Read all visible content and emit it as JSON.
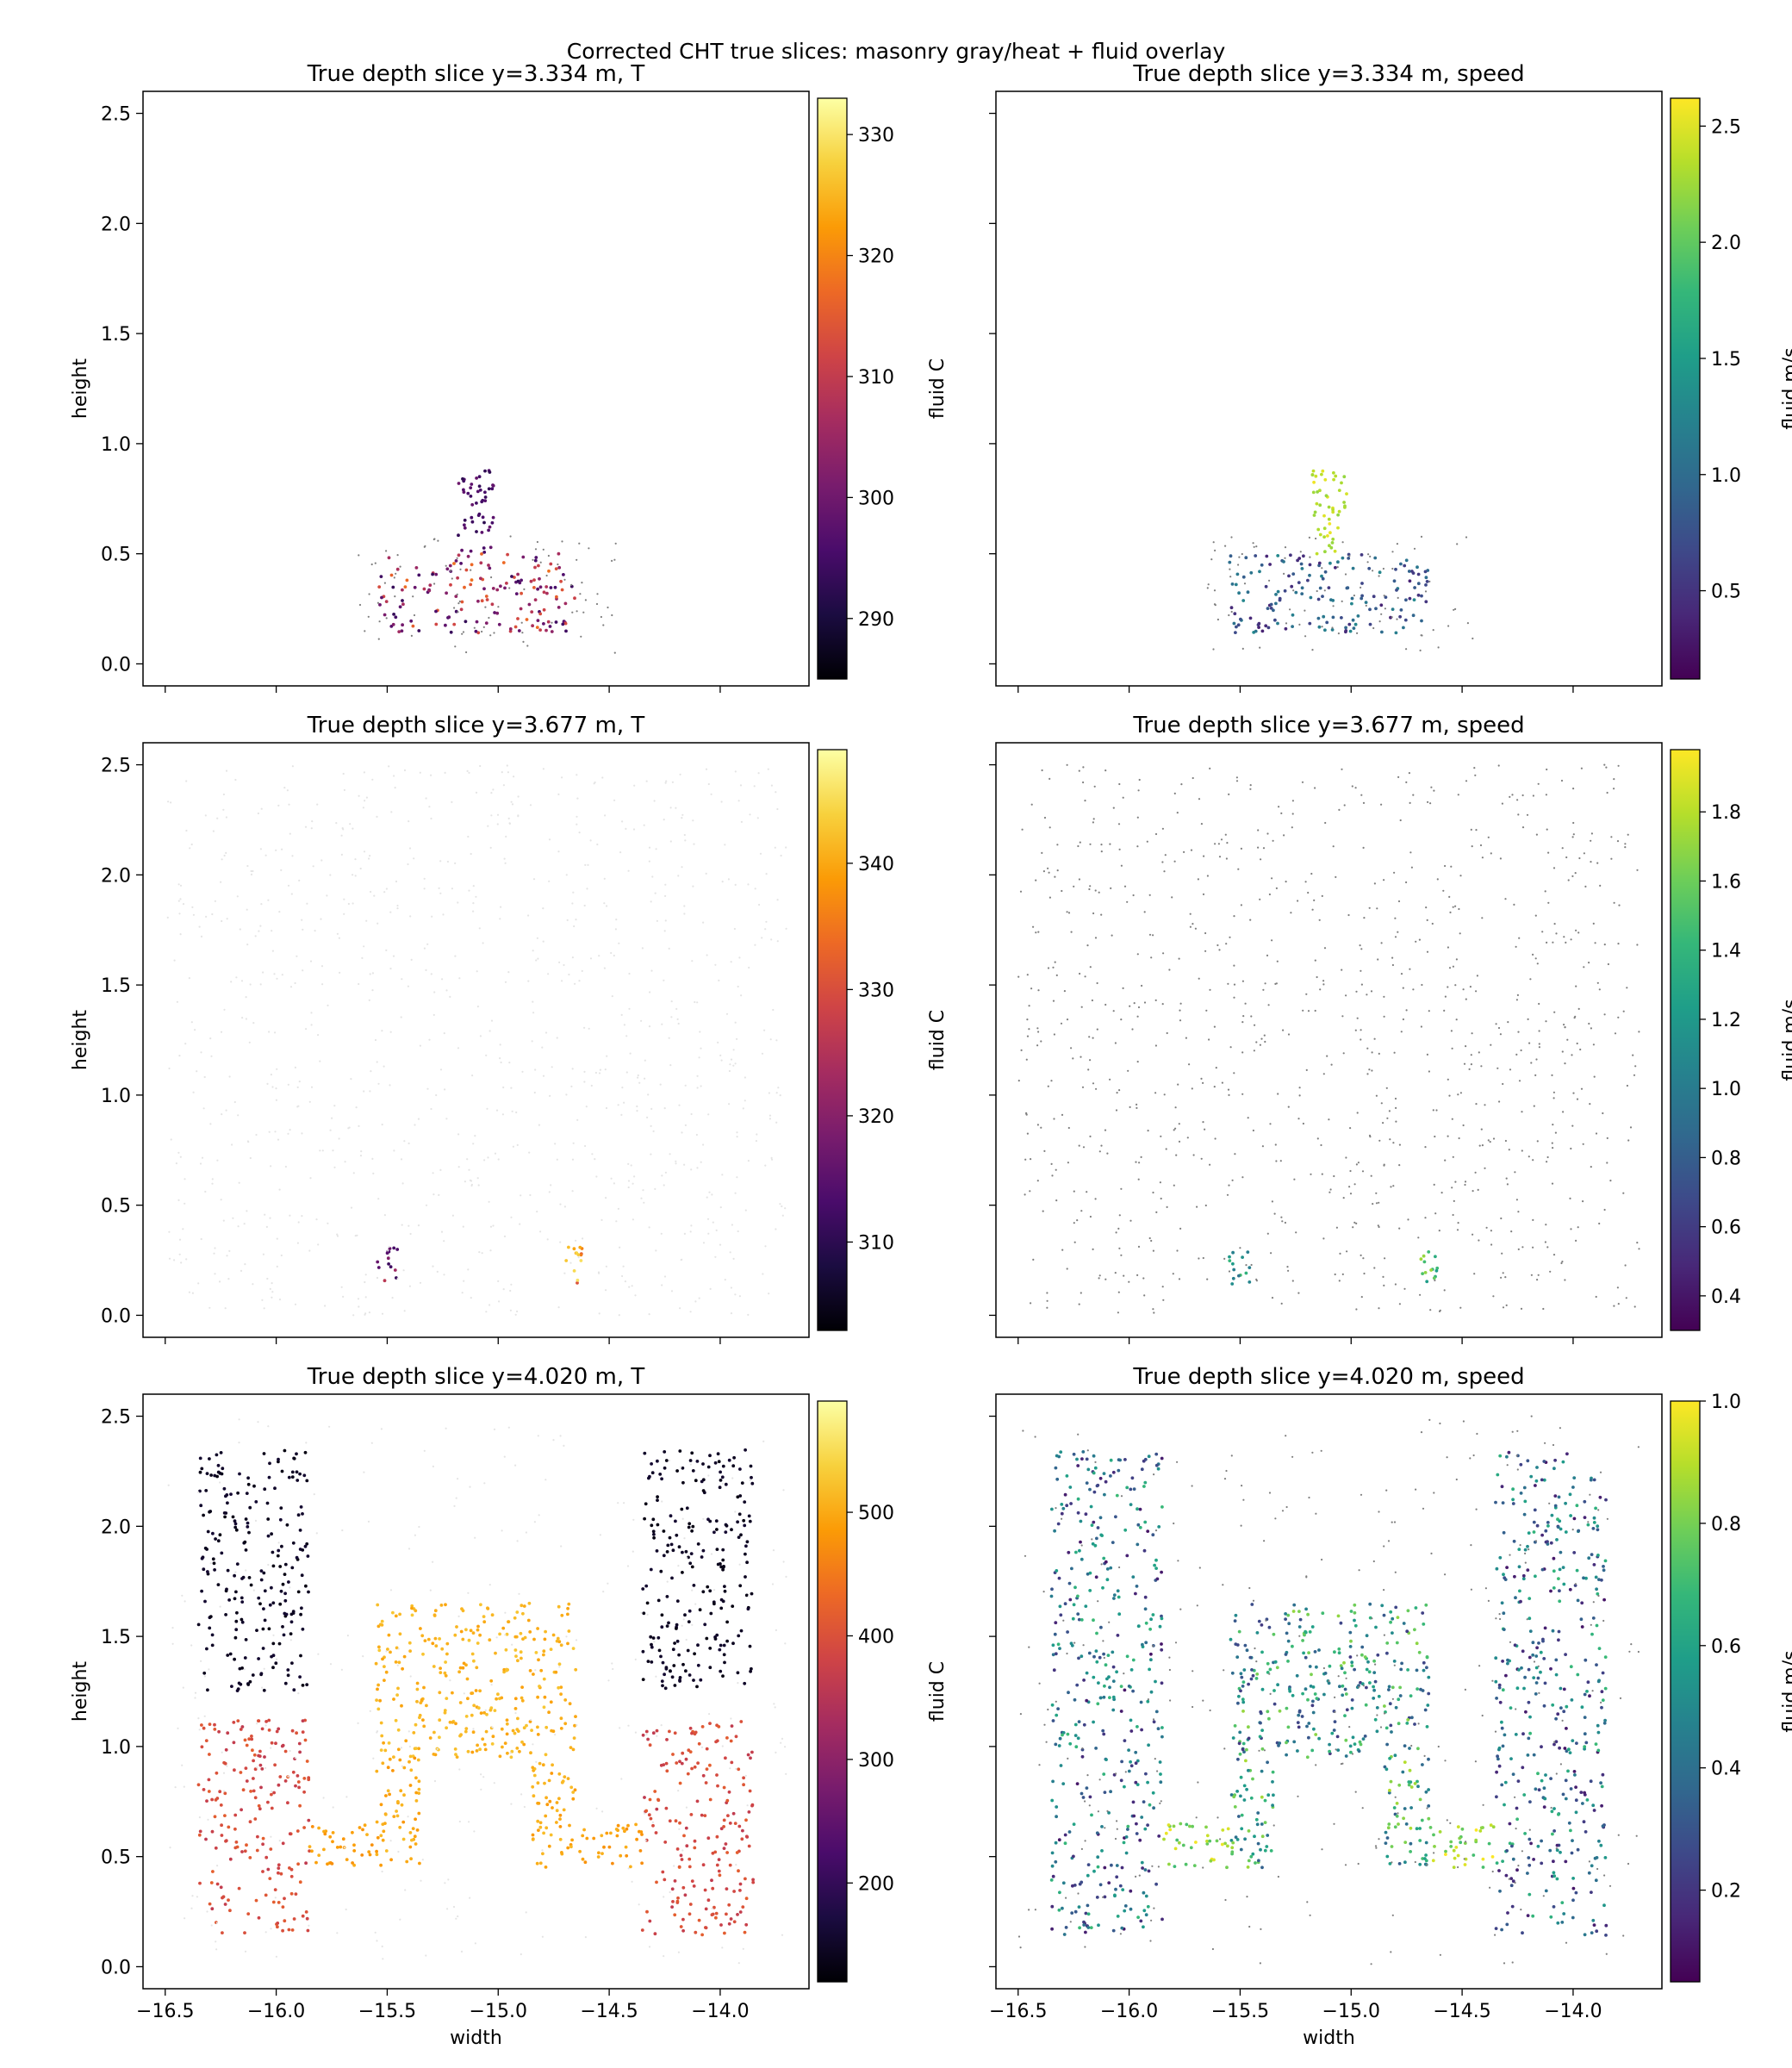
{
  "figure": {
    "suptitle": "Corrected CHT true slices: masonry gray/heat + fluid overlay"
  },
  "chart_data": [
    {
      "type": "scatter",
      "field": "T",
      "depth": "3.334",
      "title": "True depth slice y=3.334 m, T",
      "ylabel": "height",
      "xlabel": "",
      "xlim": [
        -16.6,
        -13.6
      ],
      "ylim": [
        -0.1,
        2.6
      ],
      "xticks": [
        -16.5,
        -16.0,
        -15.5,
        -15.0,
        -14.5,
        -14.0
      ],
      "xtick_labels": [],
      "yticks": [
        0.0,
        0.5,
        1.0,
        1.5,
        2.0,
        2.5
      ],
      "ytick_labels": [
        "0.0",
        "0.5",
        "1.0",
        "1.5",
        "2.0",
        "2.5"
      ],
      "colorbar": {
        "label": "fluid C",
        "cmap": "inferno",
        "range": [
          285,
          333
        ],
        "ticks": [
          290,
          300,
          310,
          320,
          330
        ]
      },
      "regions": [
        {
          "role": "fluid",
          "x": [
            -15.55,
            -14.65
          ],
          "y": [
            0.14,
            0.5
          ],
          "value": [
            293,
            318
          ],
          "n": 160
        },
        {
          "role": "fluid",
          "x": [
            -15.18,
            -15.02
          ],
          "y": [
            0.5,
            0.88
          ],
          "value": [
            292,
            300
          ],
          "n": 50
        },
        {
          "role": "masonry",
          "x": [
            -15.65,
            -14.45
          ],
          "y": [
            0.05,
            0.58
          ],
          "n": 90
        }
      ]
    },
    {
      "type": "scatter",
      "field": "speed",
      "depth": "3.334",
      "title": "True depth slice y=3.334 m, speed",
      "ylabel": "",
      "xlabel": "",
      "xlim": [
        -16.6,
        -13.6
      ],
      "ylim": [
        -0.1,
        2.6
      ],
      "xticks": [
        -16.5,
        -16.0,
        -15.5,
        -15.0,
        -14.5,
        -14.0
      ],
      "xtick_labels": [],
      "yticks": [
        0.0,
        0.5,
        1.0,
        1.5,
        2.0,
        2.5
      ],
      "ytick_labels": [],
      "colorbar": {
        "label": "fluid m/s",
        "cmap": "viridis",
        "range": [
          0.12,
          2.62
        ],
        "ticks": [
          0.5,
          1.0,
          1.5,
          2.0,
          2.5
        ]
      },
      "regions": [
        {
          "role": "fluid",
          "x": [
            -15.55,
            -14.65
          ],
          "y": [
            0.14,
            0.5
          ],
          "value": [
            0.35,
            1.3
          ],
          "n": 160
        },
        {
          "role": "fluid",
          "x": [
            -15.18,
            -15.02
          ],
          "y": [
            0.5,
            0.88
          ],
          "value": [
            2.2,
            2.6
          ],
          "n": 50
        },
        {
          "role": "masonry",
          "x": [
            -15.65,
            -14.45
          ],
          "y": [
            0.05,
            0.58
          ],
          "n": 90
        }
      ]
    },
    {
      "type": "scatter",
      "field": "T",
      "depth": "3.677",
      "title": "True depth slice y=3.677 m, T",
      "ylabel": "height",
      "xlabel": "",
      "xlim": [
        -16.6,
        -13.6
      ],
      "ylim": [
        -0.1,
        2.6
      ],
      "xticks": [
        -16.5,
        -16.0,
        -15.5,
        -15.0,
        -14.5,
        -14.0
      ],
      "xtick_labels": [],
      "yticks": [
        0.0,
        0.5,
        1.0,
        1.5,
        2.0,
        2.5
      ],
      "ytick_labels": [
        "0.0",
        "0.5",
        "1.0",
        "1.5",
        "2.0",
        "2.5"
      ],
      "colorbar": {
        "label": "fluid C",
        "cmap": "inferno",
        "range": [
          303,
          349
        ],
        "ticks": [
          310,
          320,
          330,
          340
        ]
      },
      "regions": [
        {
          "role": "fluid",
          "x": [
            -15.55,
            -15.45
          ],
          "y": [
            0.14,
            0.31
          ],
          "value": [
            310,
            328
          ],
          "n": 14
        },
        {
          "role": "fluid",
          "x": [
            -14.7,
            -14.6
          ],
          "y": [
            0.14,
            0.31
          ],
          "value": [
            330,
            346
          ],
          "n": 14
        },
        {
          "role": "masonry",
          "x": [
            -16.5,
            -13.7
          ],
          "y": [
            0.0,
            2.5
          ],
          "n": 900,
          "tone": "faint"
        }
      ]
    },
    {
      "type": "scatter",
      "field": "speed",
      "depth": "3.677",
      "title": "True depth slice y=3.677 m, speed",
      "ylabel": "",
      "xlabel": "",
      "xlim": [
        -16.6,
        -13.6
      ],
      "ylim": [
        -0.1,
        2.6
      ],
      "xticks": [
        -16.5,
        -16.0,
        -15.5,
        -15.0,
        -14.5,
        -14.0
      ],
      "xtick_labels": [],
      "yticks": [
        0.0,
        0.5,
        1.0,
        1.5,
        2.0,
        2.5
      ],
      "ytick_labels": [],
      "colorbar": {
        "label": "fluid m/s",
        "cmap": "viridis",
        "range": [
          0.3,
          1.98
        ],
        "ticks": [
          0.4,
          0.6,
          0.8,
          1.0,
          1.2,
          1.4,
          1.6,
          1.8
        ]
      },
      "regions": [
        {
          "role": "fluid",
          "x": [
            -15.55,
            -15.45
          ],
          "y": [
            0.14,
            0.31
          ],
          "value": [
            0.9,
            1.6
          ],
          "n": 14
        },
        {
          "role": "fluid",
          "x": [
            -14.7,
            -14.6
          ],
          "y": [
            0.14,
            0.31
          ],
          "value": [
            1.2,
            1.8
          ],
          "n": 14
        },
        {
          "role": "masonry",
          "x": [
            -16.5,
            -13.7
          ],
          "y": [
            0.0,
            2.5
          ],
          "n": 900,
          "tone": "gray"
        }
      ]
    },
    {
      "type": "scatter",
      "field": "T",
      "depth": "4.020",
      "title": "True depth slice y=4.020 m, T",
      "ylabel": "height",
      "xlabel": "width",
      "xlim": [
        -16.6,
        -13.6
      ],
      "ylim": [
        -0.1,
        2.6
      ],
      "xticks": [
        -16.5,
        -16.0,
        -15.5,
        -15.0,
        -14.5,
        -14.0
      ],
      "xtick_labels": [
        "−16.5",
        "−16.0",
        "−15.5",
        "−15.0",
        "−14.5",
        "−14.0"
      ],
      "yticks": [
        0.0,
        0.5,
        1.0,
        1.5,
        2.0,
        2.5
      ],
      "ytick_labels": [
        "0.0",
        "0.5",
        "1.0",
        "1.5",
        "2.0",
        "2.5"
      ],
      "colorbar": {
        "label": "fluid C",
        "cmap": "inferno",
        "range": [
          120,
          590
        ],
        "ticks": [
          200,
          300,
          400,
          500
        ]
      },
      "regions": [
        {
          "role": "fluid",
          "x": [
            -16.35,
            -15.85
          ],
          "y": [
            1.25,
            2.35
          ],
          "value": [
            130,
            160
          ],
          "n": 220
        },
        {
          "role": "fluid",
          "x": [
            -14.35,
            -13.85
          ],
          "y": [
            1.25,
            2.35
          ],
          "value": [
            130,
            160
          ],
          "n": 220
        },
        {
          "role": "fluid",
          "x": [
            -16.35,
            -15.85
          ],
          "y": [
            0.14,
            1.12
          ],
          "value": [
            360,
            420
          ],
          "n": 190
        },
        {
          "role": "fluid",
          "x": [
            -14.35,
            -13.85
          ],
          "y": [
            0.14,
            1.12
          ],
          "value": [
            360,
            420
          ],
          "n": 190
        },
        {
          "role": "fluid",
          "x": [
            -15.55,
            -14.65
          ],
          "y": [
            0.95,
            1.65
          ],
          "value": [
            490,
            530
          ],
          "n": 300
        },
        {
          "role": "fluid",
          "x": [
            -15.55,
            -15.35
          ],
          "y": [
            0.45,
            0.95
          ],
          "value": [
            480,
            520
          ],
          "n": 60
        },
        {
          "role": "fluid",
          "x": [
            -14.85,
            -14.65
          ],
          "y": [
            0.45,
            0.95
          ],
          "value": [
            480,
            520
          ],
          "n": 60
        },
        {
          "role": "fluid",
          "x": [
            -15.85,
            -15.55
          ],
          "y": [
            0.45,
            0.65
          ],
          "value": [
            470,
            510
          ],
          "n": 35
        },
        {
          "role": "fluid",
          "x": [
            -14.65,
            -14.35
          ],
          "y": [
            0.45,
            0.65
          ],
          "value": [
            470,
            510
          ],
          "n": 35
        },
        {
          "role": "masonry",
          "x": [
            -16.5,
            -13.7
          ],
          "y": [
            0.0,
            2.5
          ],
          "n": 300,
          "tone": "faint"
        }
      ]
    },
    {
      "type": "scatter",
      "field": "speed",
      "depth": "4.020",
      "title": "True depth slice y=4.020 m, speed",
      "ylabel": "",
      "xlabel": "width",
      "xlim": [
        -16.6,
        -13.6
      ],
      "ylim": [
        -0.1,
        2.6
      ],
      "xticks": [
        -16.5,
        -16.0,
        -15.5,
        -15.0,
        -14.5,
        -14.0
      ],
      "xtick_labels": [
        "−16.5",
        "−16.0",
        "−15.5",
        "−15.0",
        "−14.5",
        "−14.0"
      ],
      "yticks": [
        0.0,
        0.5,
        1.0,
        1.5,
        2.0,
        2.5
      ],
      "ytick_labels": [],
      "colorbar": {
        "label": "fluid m/s",
        "cmap": "viridis",
        "range": [
          0.05,
          1.0
        ],
        "ticks": [
          0.2,
          0.4,
          0.6,
          0.8,
          1.0
        ]
      },
      "regions": [
        {
          "role": "fluid",
          "x": [
            -16.35,
            -15.85
          ],
          "y": [
            0.14,
            2.35
          ],
          "value": [
            0.1,
            0.7
          ],
          "n": 400
        },
        {
          "role": "fluid",
          "x": [
            -14.35,
            -13.85
          ],
          "y": [
            0.14,
            2.35
          ],
          "value": [
            0.1,
            0.7
          ],
          "n": 400
        },
        {
          "role": "fluid",
          "x": [
            -15.55,
            -14.65
          ],
          "y": [
            0.95,
            1.65
          ],
          "value": [
            0.2,
            0.85
          ],
          "n": 300
        },
        {
          "role": "fluid",
          "x": [
            -15.55,
            -15.35
          ],
          "y": [
            0.45,
            0.95
          ],
          "value": [
            0.3,
            0.9
          ],
          "n": 60
        },
        {
          "role": "fluid",
          "x": [
            -14.85,
            -14.65
          ],
          "y": [
            0.45,
            0.95
          ],
          "value": [
            0.3,
            0.9
          ],
          "n": 60
        },
        {
          "role": "fluid",
          "x": [
            -15.85,
            -15.55
          ],
          "y": [
            0.45,
            0.65
          ],
          "value": [
            0.7,
            1.0
          ],
          "n": 35
        },
        {
          "role": "fluid",
          "x": [
            -14.65,
            -14.35
          ],
          "y": [
            0.45,
            0.65
          ],
          "value": [
            0.7,
            1.0
          ],
          "n": 35
        },
        {
          "role": "masonry",
          "x": [
            -16.5,
            -13.7
          ],
          "y": [
            0.0,
            2.5
          ],
          "n": 300,
          "tone": "gray"
        }
      ]
    }
  ],
  "colors": {
    "masonry_gray": "#7f7f7f",
    "masonry_faint": "#e4e4e4",
    "axes": "#000000",
    "background": "#ffffff"
  }
}
